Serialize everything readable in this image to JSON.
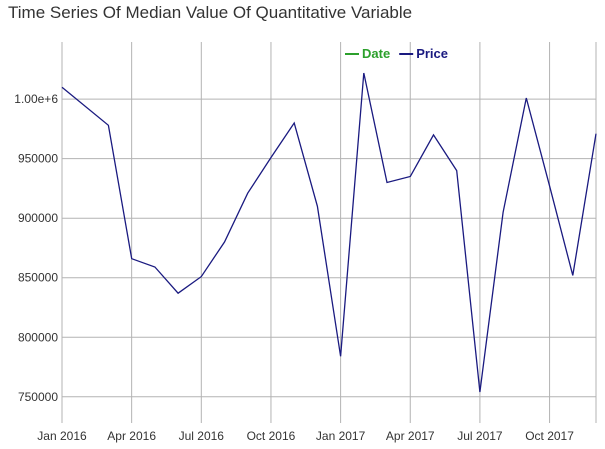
{
  "chart_data": {
    "type": "line",
    "title": "Time Series Of Median Value Of Quantitative Variable",
    "xlabel": "",
    "ylabel": "",
    "grid": true,
    "legend_position": "top",
    "legend": [
      {
        "label": "Date",
        "color": "#2ca02c"
      },
      {
        "label": "Price",
        "color": "#1a1a80"
      }
    ],
    "x_ticks": [
      "Jan 2016",
      "Apr 2016",
      "Jul 2016",
      "Oct 2016",
      "Jan 2017",
      "Apr 2017",
      "Jul 2017",
      "Oct 2017"
    ],
    "x_tick_values": [
      "2016-01",
      "2016-04",
      "2016-07",
      "2016-10",
      "2017-01",
      "2017-04",
      "2017-07",
      "2017-10"
    ],
    "y_ticks": [
      750000,
      800000,
      850000,
      900000,
      950000,
      1000000
    ],
    "y_tick_labels": [
      "750000",
      "800000",
      "850000",
      "900000",
      "950000",
      "1.00e+6"
    ],
    "xlim": [
      "2016-01",
      "2017-12"
    ],
    "ylim": [
      728000,
      1048000
    ],
    "series": [
      {
        "name": "Price",
        "color": "#1a1a80",
        "points": [
          {
            "x": "2016-01",
            "y": 1010000
          },
          {
            "x": "2016-03",
            "y": 978000
          },
          {
            "x": "2016-04",
            "y": 866000
          },
          {
            "x": "2016-05",
            "y": 859000
          },
          {
            "x": "2016-06",
            "y": 837000
          },
          {
            "x": "2016-07",
            "y": 851000
          },
          {
            "x": "2016-08",
            "y": 880000
          },
          {
            "x": "2016-09",
            "y": 921000
          },
          {
            "x": "2016-10",
            "y": 951000
          },
          {
            "x": "2016-11",
            "y": 980000
          },
          {
            "x": "2016-12",
            "y": 910000
          },
          {
            "x": "2017-01",
            "y": 784000
          },
          {
            "x": "2017-02",
            "y": 1022000
          },
          {
            "x": "2017-03",
            "y": 930000
          },
          {
            "x": "2017-04",
            "y": 935000
          },
          {
            "x": "2017-05",
            "y": 970000
          },
          {
            "x": "2017-06",
            "y": 940000
          },
          {
            "x": "2017-07",
            "y": 754000
          },
          {
            "x": "2017-08",
            "y": 905000
          },
          {
            "x": "2017-09",
            "y": 1001000
          },
          {
            "x": "2017-10",
            "y": 927000
          },
          {
            "x": "2017-11",
            "y": 852000
          },
          {
            "x": "2017-12",
            "y": 971000
          }
        ]
      }
    ]
  }
}
